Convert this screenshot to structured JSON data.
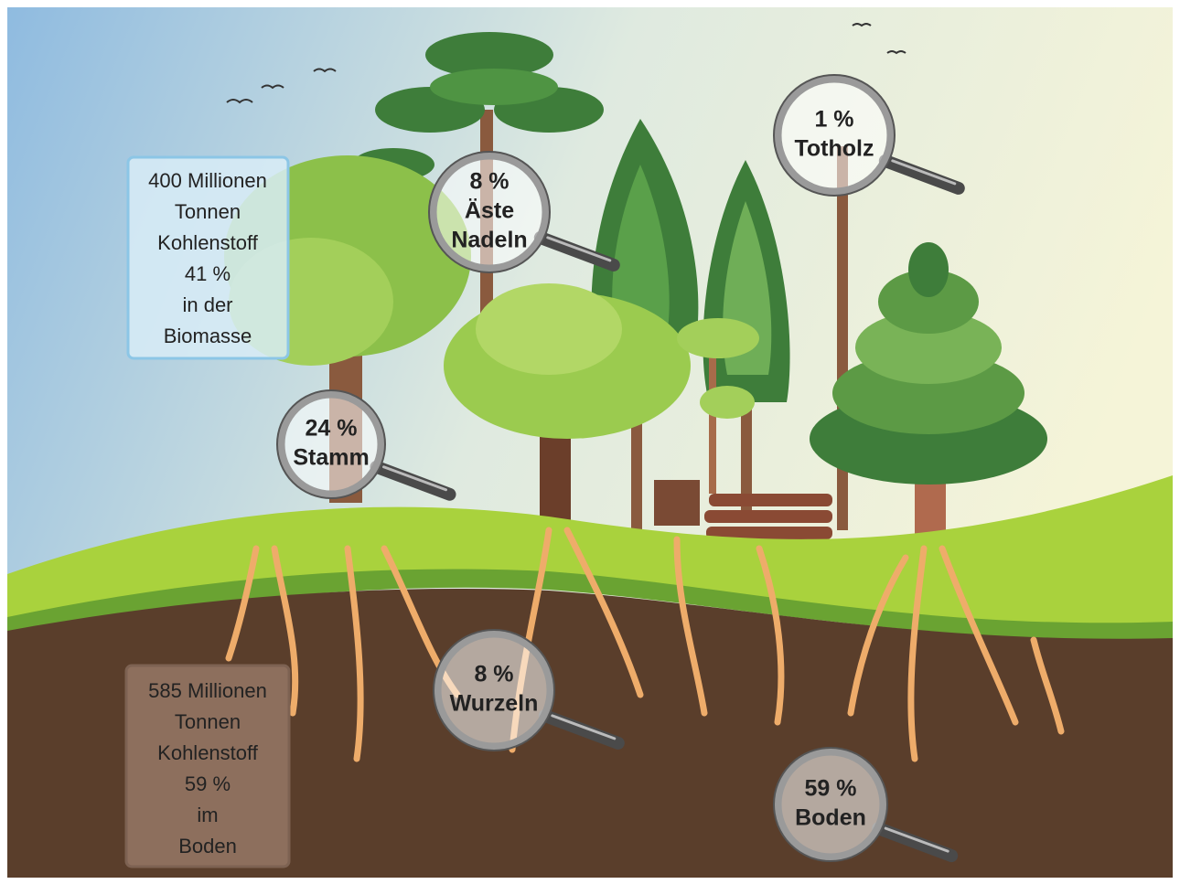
{
  "biomass_box": {
    "lines": [
      "400 Millionen",
      "Tonnen",
      "Kohlenstoff",
      "41 %",
      "in der",
      "Biomasse"
    ]
  },
  "soil_box": {
    "lines": [
      "585 Millionen",
      "Tonnen",
      "Kohlenstoff",
      "59 %",
      "im",
      "Boden"
    ]
  },
  "magnifiers": [
    {
      "lines": [
        "8 %",
        "Äste",
        "Nadeln"
      ]
    },
    {
      "lines": [
        "1 %",
        "Totholz"
      ]
    },
    {
      "lines": [
        "24 %",
        "Stamm"
      ]
    },
    {
      "lines": [
        "8 %",
        "Wurzeln"
      ]
    },
    {
      "lines": [
        "59 %",
        "Boden"
      ]
    }
  ]
}
